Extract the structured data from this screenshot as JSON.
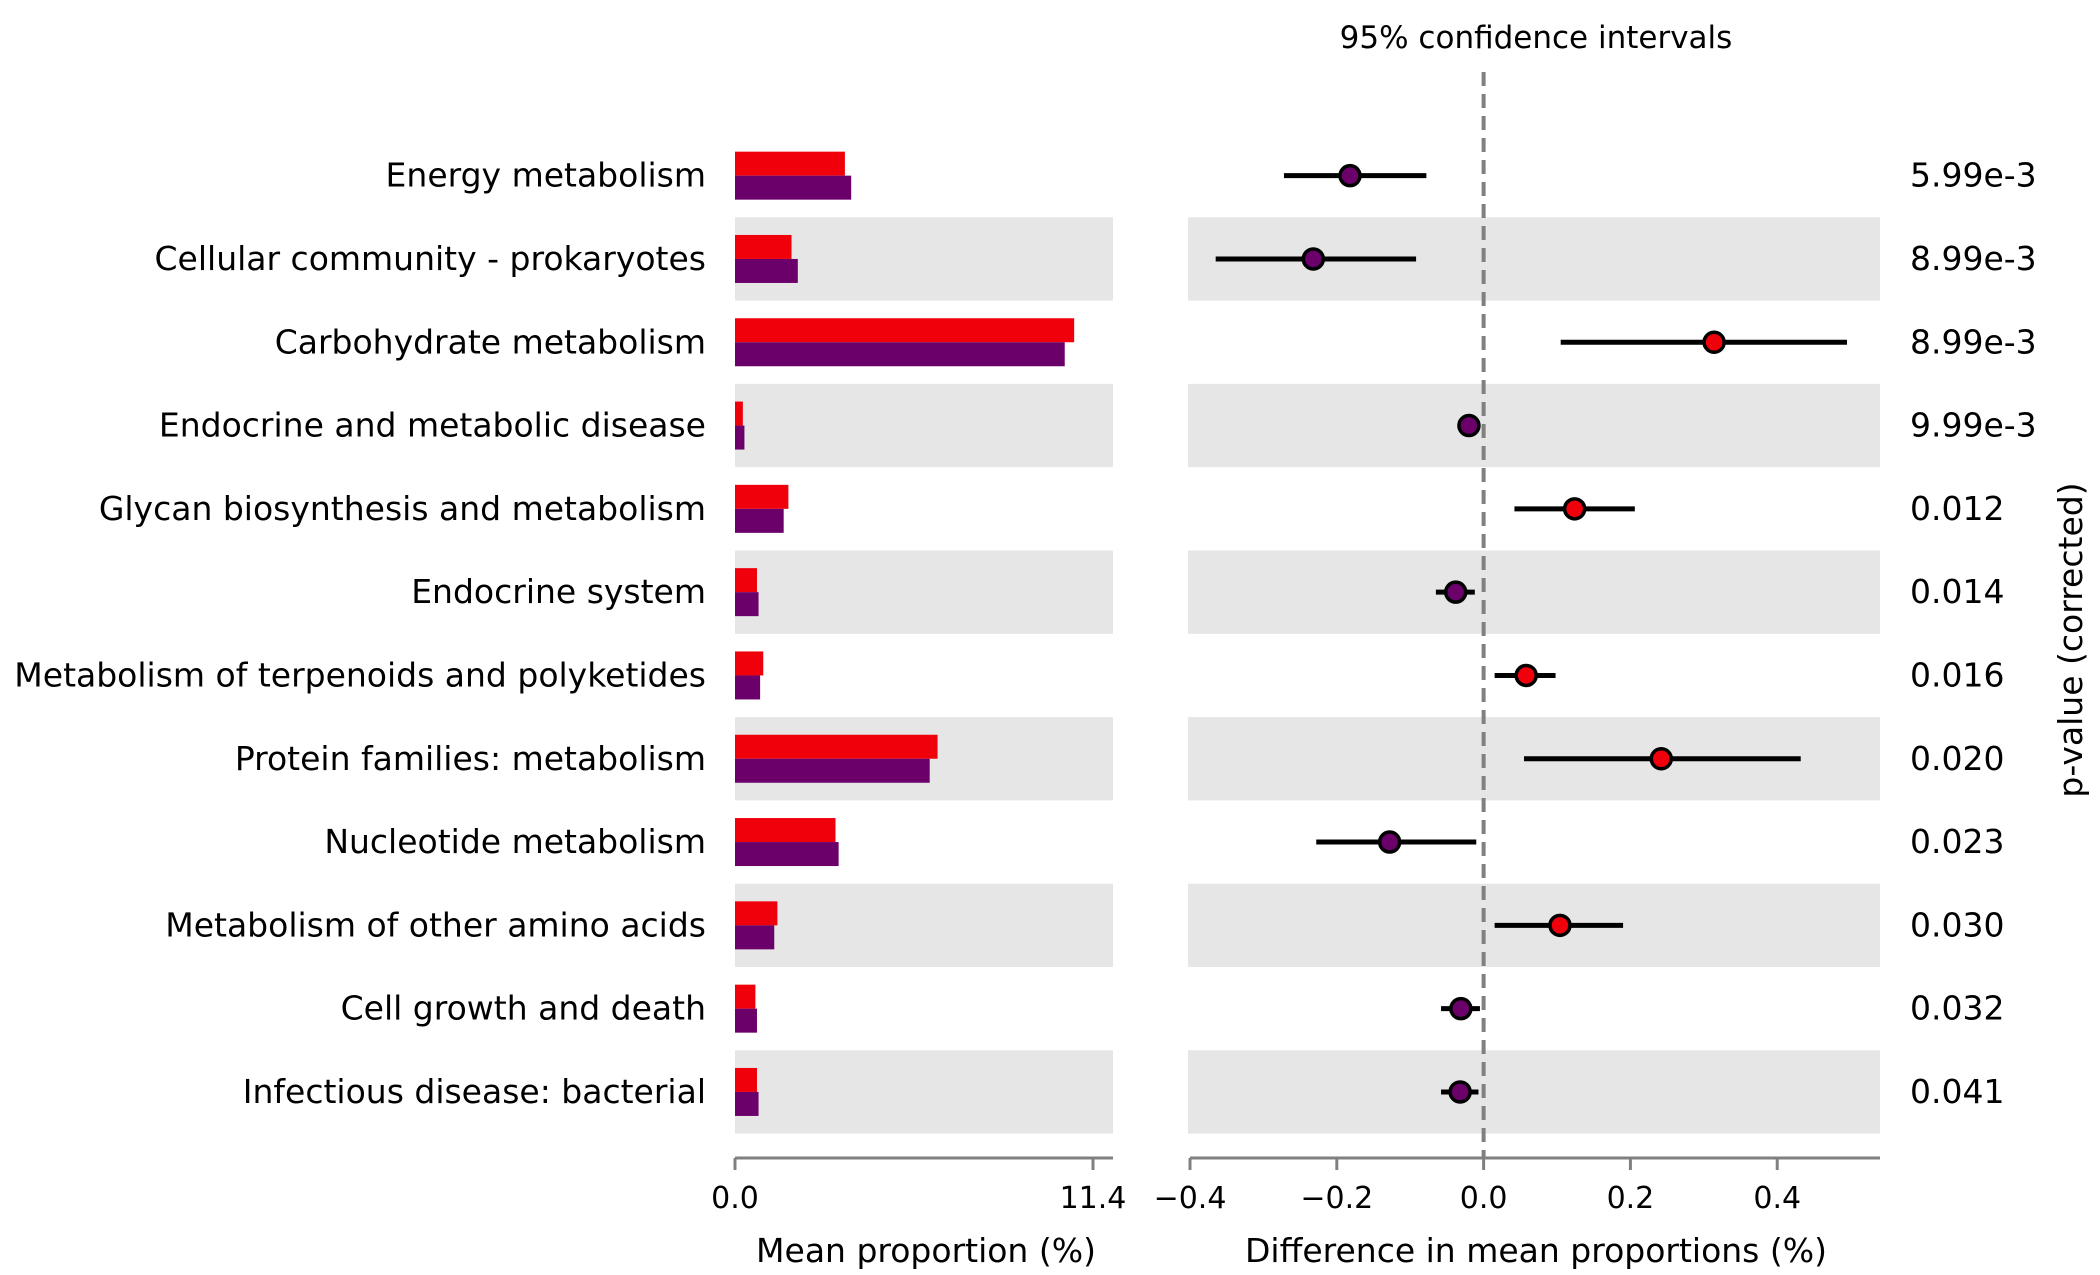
{
  "chart_data": {
    "type": "bar",
    "title": "95% confidence intervals",
    "categories": [
      "Energy metabolism",
      "Cellular community - prokaryotes",
      "Carbohydrate metabolism",
      "Endocrine and metabolic disease",
      "Glycan biosynthesis and metabolism",
      "Endocrine system",
      "Metabolism of terpenoids and polyketides",
      "Protein families: metabolism",
      "Nucleotide metabolism",
      "Metabolism of other amino acids",
      "Cell growth and death",
      "Infectious disease: bacterial"
    ],
    "series": [
      {
        "color": "#f0000b",
        "values": [
          3.5,
          1.8,
          10.8,
          0.25,
          1.7,
          0.7,
          0.9,
          6.45,
          3.2,
          1.35,
          0.65,
          0.7
        ]
      },
      {
        "color": "#6b006b",
        "values": [
          3.7,
          2.0,
          10.5,
          0.3,
          1.55,
          0.75,
          0.8,
          6.2,
          3.3,
          1.25,
          0.7,
          0.75
        ]
      }
    ],
    "bar_axis": {
      "xlabel": "Mean proportion (%)",
      "xlim": [
        0.0,
        11.4
      ],
      "ticks": [
        "0.0",
        "11.4"
      ]
    },
    "ci_panel": {
      "xlabel": "Difference in mean proportions (%)",
      "xlim": [
        -0.4,
        0.54
      ],
      "ticks": [
        -0.4,
        -0.2,
        0.0,
        0.2,
        0.4
      ],
      "tick_labels": [
        "−0.4",
        "−0.2",
        "0.0",
        "0.2",
        "0.4"
      ],
      "diff": [
        -0.182,
        -0.232,
        0.314,
        -0.02,
        0.124,
        -0.038,
        0.058,
        0.242,
        -0.128,
        0.104,
        -0.031,
        -0.032
      ],
      "ci_low": [
        -0.272,
        -0.365,
        0.105,
        -0.02,
        0.042,
        -0.065,
        0.015,
        0.055,
        -0.228,
        0.015,
        -0.058,
        -0.058
      ],
      "ci_high": [
        -0.078,
        -0.092,
        0.495,
        -0.02,
        0.206,
        -0.012,
        0.098,
        0.432,
        -0.01,
        0.19,
        -0.005,
        -0.007
      ]
    },
    "pvalues": [
      "5.99e-3",
      "8.99e-3",
      "8.99e-3",
      "9.99e-3",
      "0.012",
      "0.014",
      "0.016",
      "0.020",
      "0.023",
      "0.030",
      "0.032",
      "0.041"
    ],
    "pvalue_label": "p-value (corrected)",
    "grid": false
  }
}
